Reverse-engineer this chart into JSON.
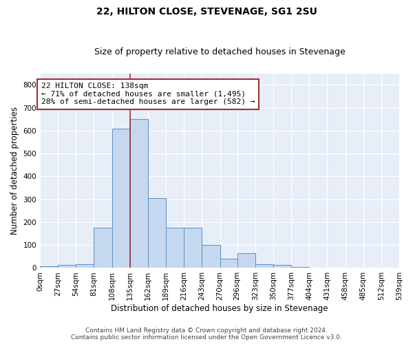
{
  "title": "22, HILTON CLOSE, STEVENAGE, SG1 2SU",
  "subtitle": "Size of property relative to detached houses in Stevenage",
  "xlabel": "Distribution of detached houses by size in Stevenage",
  "ylabel": "Number of detached properties",
  "bar_color": "#c5d8f0",
  "bar_edge_color": "#5a8fc2",
  "background_color": "#e8eef8",
  "grid_color": "#ffffff",
  "bin_edges": [
    0,
    27,
    54,
    81,
    108,
    135,
    162,
    189,
    216,
    243,
    270,
    296,
    323,
    350,
    377,
    404,
    431,
    458,
    485,
    512,
    539
  ],
  "bin_labels": [
    "0sqm",
    "27sqm",
    "54sqm",
    "81sqm",
    "108sqm",
    "135sqm",
    "162sqm",
    "189sqm",
    "216sqm",
    "243sqm",
    "270sqm",
    "296sqm",
    "323sqm",
    "350sqm",
    "377sqm",
    "404sqm",
    "431sqm",
    "458sqm",
    "485sqm",
    "512sqm",
    "539sqm"
  ],
  "bar_heights": [
    7,
    12,
    15,
    175,
    610,
    650,
    305,
    175,
    175,
    100,
    40,
    65,
    15,
    12,
    5,
    0,
    0,
    0,
    0,
    0
  ],
  "ylim": [
    0,
    850
  ],
  "yticks": [
    0,
    100,
    200,
    300,
    400,
    500,
    600,
    700,
    800
  ],
  "property_line_x": 135,
  "property_line_color": "#a03030",
  "annotation_text": "22 HILTON CLOSE: 138sqm\n← 71% of detached houses are smaller (1,495)\n28% of semi-detached houses are larger (582) →",
  "annotation_box_color": "white",
  "annotation_box_edge_color": "#a03030",
  "footer_line1": "Contains HM Land Registry data © Crown copyright and database right 2024.",
  "footer_line2": "Contains public sector information licensed under the Open Government Licence v3.0.",
  "title_fontsize": 10,
  "subtitle_fontsize": 9,
  "axis_label_fontsize": 8.5,
  "tick_fontsize": 7.5,
  "annotation_fontsize": 8,
  "footer_fontsize": 6.5
}
